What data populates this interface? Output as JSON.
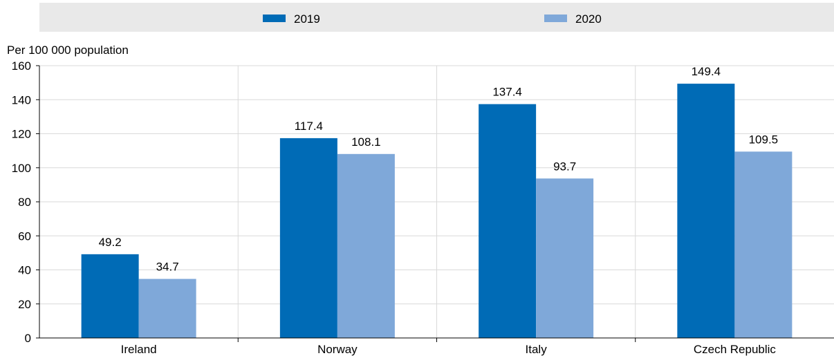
{
  "chart_data": {
    "type": "bar",
    "ylabel": "Per 100 000 population",
    "xlabel": "",
    "categories": [
      "Ireland",
      "Norway",
      "Italy",
      "Czech Republic"
    ],
    "series": [
      {
        "name": "2019",
        "color": "#006bb6",
        "values": [
          49.2,
          117.4,
          137.4,
          149.4
        ],
        "labels": [
          "49.2",
          "117.4",
          "137.4",
          "149.4"
        ]
      },
      {
        "name": "2020",
        "color": "#7fa8d9",
        "values": [
          34.7,
          108.1,
          93.7,
          109.5
        ],
        "labels": [
          "34.7",
          "108.1",
          "93.7",
          "109.5"
        ]
      }
    ],
    "ylim": [
      0,
      160
    ],
    "yticks": [
      "0",
      "20",
      "40",
      "60",
      "80",
      "100",
      "120",
      "140",
      "160"
    ],
    "grid": true,
    "legend_position": "top"
  }
}
